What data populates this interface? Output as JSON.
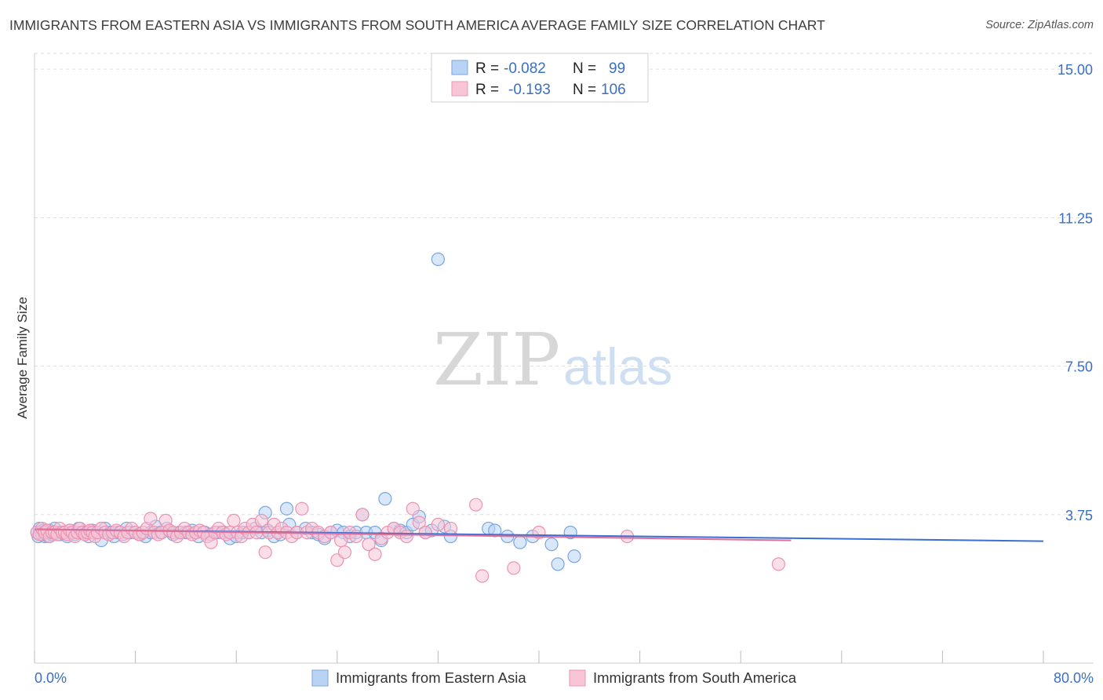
{
  "title": "IMMIGRANTS FROM EASTERN ASIA VS IMMIGRANTS FROM SOUTH AMERICA AVERAGE FAMILY SIZE CORRELATION CHART",
  "source": "Source: ZipAtlas.com",
  "watermark": {
    "zip": "ZIP",
    "atlas": "atlas"
  },
  "legend": {
    "r_label": "R =",
    "n_label": "N =",
    "series": [
      {
        "r": "-0.082",
        "n": "99"
      },
      {
        "r": "-0.193",
        "n": "106"
      }
    ]
  },
  "colors": {
    "blue_fill": "#b9d3f5",
    "blue_stroke": "#7aa6e0",
    "blue_line": "#3a6fd0",
    "pink_fill": "#f7c5d6",
    "pink_stroke": "#ec93b1",
    "pink_line": "#e0709a",
    "grid": "#dddddd",
    "axis_text": "#3a6fc4"
  },
  "chart_data": {
    "type": "scatter",
    "title": "IMMIGRANTS FROM EASTERN ASIA VS IMMIGRANTS FROM SOUTH AMERICA AVERAGE FAMILY SIZE CORRELATION CHART",
    "xlabel": "",
    "ylabel": "Average Family Size",
    "xlim": [
      0,
      80
    ],
    "ylim": [
      0,
      15.4
    ],
    "x_tick_labels": [
      "0.0%",
      "80.0%"
    ],
    "y_ticks": [
      3.75,
      7.5,
      11.25,
      15.0
    ],
    "y_tick_labels": [
      "3.75",
      "7.50",
      "11.25",
      "15.00"
    ],
    "grid": "horizontal dashed",
    "legend_position": "top-center",
    "series": [
      {
        "name": "Immigrants from Eastern Asia",
        "color": "#b9d3f5",
        "r": -0.082,
        "n": 99,
        "trend": {
          "x": [
            0,
            80
          ],
          "y": [
            3.38,
            3.08
          ]
        },
        "points": [
          [
            0.2,
            3.3
          ],
          [
            0.3,
            3.2
          ],
          [
            0.4,
            3.4
          ],
          [
            0.5,
            3.3
          ],
          [
            0.6,
            3.25
          ],
          [
            0.7,
            3.35
          ],
          [
            0.8,
            3.2
          ],
          [
            0.9,
            3.3
          ],
          [
            1.0,
            3.3
          ],
          [
            1.1,
            3.2
          ],
          [
            1.2,
            3.35
          ],
          [
            1.3,
            3.3
          ],
          [
            1.4,
            3.25
          ],
          [
            1.5,
            3.3
          ],
          [
            1.6,
            3.4
          ],
          [
            1.8,
            3.3
          ],
          [
            2.0,
            3.25
          ],
          [
            2.2,
            3.3
          ],
          [
            2.4,
            3.3
          ],
          [
            2.6,
            3.2
          ],
          [
            2.8,
            3.35
          ],
          [
            3.0,
            3.3
          ],
          [
            3.2,
            3.25
          ],
          [
            3.5,
            3.4
          ],
          [
            3.8,
            3.3
          ],
          [
            4.0,
            3.3
          ],
          [
            4.3,
            3.2
          ],
          [
            4.6,
            3.35
          ],
          [
            5.0,
            3.3
          ],
          [
            5.3,
            3.1
          ],
          [
            5.6,
            3.4
          ],
          [
            6.0,
            3.3
          ],
          [
            6.3,
            3.2
          ],
          [
            6.6,
            3.3
          ],
          [
            7.0,
            3.25
          ],
          [
            7.3,
            3.4
          ],
          [
            7.6,
            3.3
          ],
          [
            8.0,
            3.3
          ],
          [
            8.4,
            3.25
          ],
          [
            8.8,
            3.2
          ],
          [
            9.2,
            3.3
          ],
          [
            9.6,
            3.45
          ],
          [
            10.0,
            3.3
          ],
          [
            10.5,
            3.4
          ],
          [
            11.0,
            3.25
          ],
          [
            11.5,
            3.3
          ],
          [
            12.0,
            3.3
          ],
          [
            12.5,
            3.35
          ],
          [
            13.0,
            3.2
          ],
          [
            13.5,
            3.3
          ],
          [
            14.0,
            3.25
          ],
          [
            14.5,
            3.3
          ],
          [
            15.0,
            3.3
          ],
          [
            15.5,
            3.15
          ],
          [
            16.0,
            3.2
          ],
          [
            16.5,
            3.3
          ],
          [
            17.0,
            3.3
          ],
          [
            17.5,
            3.4
          ],
          [
            18.0,
            3.3
          ],
          [
            18.5,
            3.35
          ],
          [
            18.3,
            3.8
          ],
          [
            19.0,
            3.2
          ],
          [
            19.5,
            3.25
          ],
          [
            20.0,
            3.9
          ],
          [
            20.2,
            3.5
          ],
          [
            20.8,
            3.3
          ],
          [
            21.5,
            3.4
          ],
          [
            22.0,
            3.3
          ],
          [
            22.5,
            3.25
          ],
          [
            23.0,
            3.15
          ],
          [
            23.5,
            3.3
          ],
          [
            24.0,
            3.35
          ],
          [
            24.5,
            3.3
          ],
          [
            25.0,
            3.2
          ],
          [
            25.5,
            3.3
          ],
          [
            26.0,
            3.75
          ],
          [
            26.3,
            3.3
          ],
          [
            27.0,
            3.3
          ],
          [
            27.5,
            3.1
          ],
          [
            27.8,
            4.15
          ],
          [
            28.5,
            3.4
          ],
          [
            29.0,
            3.35
          ],
          [
            29.5,
            3.3
          ],
          [
            30.0,
            3.5
          ],
          [
            30.5,
            3.7
          ],
          [
            31.0,
            3.3
          ],
          [
            31.5,
            3.35
          ],
          [
            32.0,
            10.2
          ],
          [
            32.5,
            3.45
          ],
          [
            33.0,
            3.2
          ],
          [
            36.0,
            3.4
          ],
          [
            36.5,
            3.35
          ],
          [
            37.5,
            3.2
          ],
          [
            38.5,
            3.05
          ],
          [
            39.5,
            3.2
          ],
          [
            41.0,
            3.0
          ],
          [
            41.5,
            2.5
          ],
          [
            42.5,
            3.3
          ],
          [
            42.8,
            2.7
          ]
        ]
      },
      {
        "name": "Immigrants from South America",
        "color": "#f7c5d6",
        "r": -0.193,
        "n": 106,
        "trend": {
          "x": [
            0,
            60
          ],
          "y": [
            3.38,
            3.1
          ]
        },
        "points": [
          [
            0.2,
            3.3
          ],
          [
            0.4,
            3.25
          ],
          [
            0.6,
            3.4
          ],
          [
            0.8,
            3.3
          ],
          [
            1.0,
            3.35
          ],
          [
            1.2,
            3.2
          ],
          [
            1.4,
            3.3
          ],
          [
            1.6,
            3.3
          ],
          [
            1.8,
            3.25
          ],
          [
            2.0,
            3.4
          ],
          [
            2.2,
            3.3
          ],
          [
            2.4,
            3.3
          ],
          [
            2.6,
            3.25
          ],
          [
            2.8,
            3.35
          ],
          [
            3.0,
            3.3
          ],
          [
            3.2,
            3.2
          ],
          [
            3.4,
            3.3
          ],
          [
            3.6,
            3.4
          ],
          [
            3.8,
            3.3
          ],
          [
            4.0,
            3.25
          ],
          [
            4.2,
            3.3
          ],
          [
            4.4,
            3.35
          ],
          [
            4.6,
            3.3
          ],
          [
            4.8,
            3.2
          ],
          [
            5.0,
            3.3
          ],
          [
            5.3,
            3.4
          ],
          [
            5.6,
            3.3
          ],
          [
            5.9,
            3.25
          ],
          [
            6.2,
            3.3
          ],
          [
            6.5,
            3.35
          ],
          [
            6.8,
            3.3
          ],
          [
            7.1,
            3.2
          ],
          [
            7.4,
            3.3
          ],
          [
            7.7,
            3.4
          ],
          [
            8.0,
            3.3
          ],
          [
            8.3,
            3.25
          ],
          [
            8.6,
            3.3
          ],
          [
            8.9,
            3.4
          ],
          [
            9.2,
            3.65
          ],
          [
            9.5,
            3.3
          ],
          [
            9.8,
            3.25
          ],
          [
            10.1,
            3.3
          ],
          [
            10.4,
            3.6
          ],
          [
            10.7,
            3.35
          ],
          [
            11.0,
            3.3
          ],
          [
            11.3,
            3.2
          ],
          [
            11.6,
            3.3
          ],
          [
            11.9,
            3.4
          ],
          [
            12.2,
            3.3
          ],
          [
            12.5,
            3.25
          ],
          [
            12.8,
            3.3
          ],
          [
            13.1,
            3.35
          ],
          [
            13.4,
            3.3
          ],
          [
            13.7,
            3.2
          ],
          [
            14.0,
            3.05
          ],
          [
            14.3,
            3.3
          ],
          [
            14.6,
            3.4
          ],
          [
            14.9,
            3.3
          ],
          [
            15.2,
            3.25
          ],
          [
            15.5,
            3.3
          ],
          [
            15.8,
            3.6
          ],
          [
            16.1,
            3.3
          ],
          [
            16.4,
            3.2
          ],
          [
            16.7,
            3.4
          ],
          [
            17.0,
            3.3
          ],
          [
            17.3,
            3.5
          ],
          [
            17.6,
            3.3
          ],
          [
            18.0,
            3.6
          ],
          [
            18.3,
            2.8
          ],
          [
            18.6,
            3.3
          ],
          [
            19.0,
            3.5
          ],
          [
            19.3,
            3.3
          ],
          [
            19.6,
            3.4
          ],
          [
            20.0,
            3.3
          ],
          [
            20.4,
            3.2
          ],
          [
            20.8,
            3.3
          ],
          [
            21.2,
            3.9
          ],
          [
            21.6,
            3.3
          ],
          [
            22.0,
            3.4
          ],
          [
            22.5,
            3.3
          ],
          [
            23.0,
            3.2
          ],
          [
            23.5,
            3.3
          ],
          [
            24.0,
            2.6
          ],
          [
            24.3,
            3.1
          ],
          [
            24.6,
            2.8
          ],
          [
            25.0,
            3.3
          ],
          [
            25.5,
            3.2
          ],
          [
            26.0,
            3.75
          ],
          [
            26.5,
            3.0
          ],
          [
            27.0,
            2.75
          ],
          [
            27.5,
            3.15
          ],
          [
            28.0,
            3.3
          ],
          [
            28.5,
            3.4
          ],
          [
            29.0,
            3.3
          ],
          [
            29.5,
            3.2
          ],
          [
            30.0,
            3.9
          ],
          [
            30.5,
            3.55
          ],
          [
            31.0,
            3.3
          ],
          [
            32.0,
            3.5
          ],
          [
            33.0,
            3.4
          ],
          [
            35.0,
            4.0
          ],
          [
            35.5,
            2.2
          ],
          [
            38.0,
            2.4
          ],
          [
            40.0,
            3.3
          ],
          [
            47.0,
            3.2
          ],
          [
            59.0,
            2.5
          ]
        ]
      }
    ]
  },
  "bottom_legend": [
    "Immigrants from Eastern Asia",
    "Immigrants from South America"
  ]
}
